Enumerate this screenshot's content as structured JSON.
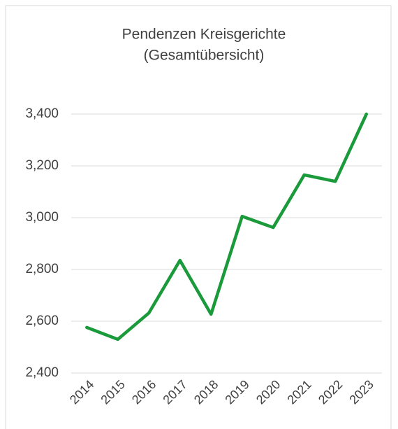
{
  "chart_data": {
    "type": "line",
    "title": [
      "Pendenzen Kreisgerichte",
      "(Gesamtübersicht)"
    ],
    "categories": [
      "2014",
      "2015",
      "2016",
      "2017",
      "2018",
      "2019",
      "2020",
      "2021",
      "2022",
      "2023"
    ],
    "series": [
      {
        "name": "Pendenzen",
        "color": "#1a9a3a",
        "values": [
          2576,
          2530,
          2632,
          2835,
          2627,
          3005,
          2962,
          3165,
          3140,
          3400
        ]
      }
    ],
    "ylim": [
      2400,
      3400
    ],
    "yticks": [
      {
        "value": 2400,
        "label": "2,400"
      },
      {
        "value": 2600,
        "label": "2,600"
      },
      {
        "value": 2800,
        "label": "2,800"
      },
      {
        "value": 3000,
        "label": "3,000"
      },
      {
        "value": 3200,
        "label": "3,200"
      },
      {
        "value": 3400,
        "label": "3,400"
      }
    ],
    "grid": true
  }
}
